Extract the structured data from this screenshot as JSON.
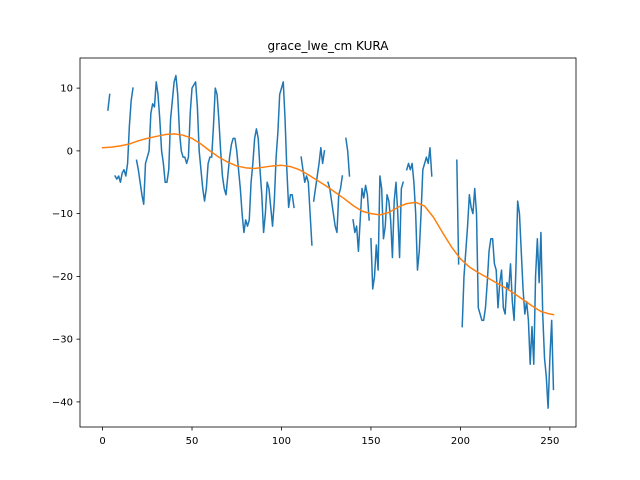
{
  "chart_data": {
    "type": "line",
    "title": "grace_lwe_cm KURA",
    "xlabel": "",
    "ylabel": "",
    "xlim": [
      -12.6,
      264.6
    ],
    "ylim": [
      -44.0,
      14.8
    ],
    "xticks": [
      0,
      50,
      100,
      150,
      200,
      250
    ],
    "yticks": [
      10,
      0,
      -10,
      -20,
      -30,
      -40
    ],
    "grid": false,
    "series": [
      {
        "color": "#1f77b4",
        "segments": [
          [
            [
              3,
              6.5
            ],
            [
              4,
              9
            ]
          ],
          [
            [
              7,
              -4
            ],
            [
              8,
              -4.5
            ],
            [
              9,
              -4
            ],
            [
              10,
              -5
            ],
            [
              11,
              -3.5
            ],
            [
              12,
              -3
            ],
            [
              13,
              -4
            ],
            [
              14,
              -2
            ],
            [
              15,
              4
            ],
            [
              16,
              8
            ],
            [
              17,
              10
            ]
          ],
          [
            [
              19,
              -1.5
            ],
            [
              20,
              -3
            ],
            [
              21,
              -5
            ],
            [
              22,
              -7
            ],
            [
              23,
              -8.5
            ],
            [
              24,
              -2
            ],
            [
              25,
              -1
            ],
            [
              26,
              0
            ],
            [
              27,
              6
            ],
            [
              28,
              7.5
            ],
            [
              29,
              7
            ],
            [
              30,
              11
            ],
            [
              31,
              9
            ],
            [
              32,
              5
            ],
            [
              33,
              0
            ],
            [
              34,
              -2
            ],
            [
              35,
              -5
            ],
            [
              36,
              -5
            ],
            [
              37,
              -3
            ],
            [
              38,
              5
            ],
            [
              39,
              8
            ],
            [
              40,
              11
            ],
            [
              41,
              12
            ],
            [
              42,
              9
            ],
            [
              43,
              3
            ],
            [
              44,
              0
            ],
            [
              45,
              -1
            ],
            [
              46,
              -1
            ],
            [
              47,
              -2
            ],
            [
              48,
              -1
            ],
            [
              49,
              6
            ],
            [
              50,
              10
            ],
            [
              51,
              10.5
            ],
            [
              52,
              11
            ],
            [
              53,
              7
            ],
            [
              54,
              0
            ],
            [
              55,
              -3
            ],
            [
              56,
              -6
            ],
            [
              57,
              -8
            ],
            [
              58,
              -6
            ],
            [
              59,
              -2
            ],
            [
              60,
              -1
            ],
            [
              61,
              -1
            ],
            [
              62,
              4
            ],
            [
              63,
              10
            ],
            [
              64,
              9
            ],
            [
              65,
              5
            ],
            [
              66,
              0
            ],
            [
              67,
              -4
            ],
            [
              68,
              -6
            ],
            [
              69,
              -7
            ],
            [
              70,
              -4
            ],
            [
              71,
              -1
            ],
            [
              72,
              1
            ],
            [
              73,
              2
            ],
            [
              74,
              2
            ],
            [
              75,
              0
            ],
            [
              76,
              -3
            ],
            [
              77,
              -6
            ],
            [
              78,
              -10
            ],
            [
              79,
              -13
            ],
            [
              80,
              -11
            ],
            [
              81,
              -12
            ],
            [
              82,
              -11
            ],
            [
              83,
              -5
            ],
            [
              84,
              -2
            ],
            [
              85,
              2
            ],
            [
              86,
              3.5
            ],
            [
              87,
              2
            ],
            [
              88,
              -3
            ],
            [
              89,
              -7
            ],
            [
              90,
              -13
            ],
            [
              91,
              -10
            ],
            [
              92,
              -5
            ],
            [
              93,
              -6
            ],
            [
              94,
              -9
            ],
            [
              95,
              -12
            ],
            [
              96,
              -8
            ],
            [
              97,
              -1
            ],
            [
              98,
              3
            ],
            [
              99,
              9
            ],
            [
              100,
              10
            ],
            [
              101,
              11
            ],
            [
              102,
              5
            ],
            [
              103,
              -3
            ],
            [
              104,
              -9
            ],
            [
              105,
              -7
            ],
            [
              106,
              -7
            ],
            [
              107,
              -9
            ]
          ],
          [
            [
              111,
              -1
            ],
            [
              112,
              -3
            ],
            [
              113,
              -5
            ],
            [
              114,
              -4
            ],
            [
              115,
              -5
            ],
            [
              116,
              -10
            ],
            [
              117,
              -15
            ]
          ],
          [
            [
              118,
              -8
            ],
            [
              119,
              -6
            ],
            [
              120,
              -4
            ],
            [
              121,
              -2
            ],
            [
              122,
              0.5
            ],
            [
              123,
              -2
            ],
            [
              124,
              0
            ]
          ],
          [
            [
              126,
              -5
            ],
            [
              127,
              -6
            ],
            [
              128,
              -8
            ],
            [
              129,
              -10
            ],
            [
              130,
              -12
            ],
            [
              131,
              -13
            ],
            [
              132,
              -7
            ],
            [
              133,
              -6
            ],
            [
              134,
              -4
            ]
          ],
          [
            [
              136,
              2
            ],
            [
              137,
              0
            ],
            [
              138,
              -4
            ]
          ],
          [
            [
              140,
              -11
            ],
            [
              141,
              -13
            ],
            [
              142,
              -12
            ],
            [
              143,
              -16
            ],
            [
              144,
              -11
            ],
            [
              145,
              -6
            ],
            [
              146,
              -7.5
            ],
            [
              147,
              -5.5
            ],
            [
              148,
              -7
            ],
            [
              149,
              -11
            ]
          ],
          [
            [
              150,
              -14
            ],
            [
              151,
              -22
            ],
            [
              152,
              -20
            ],
            [
              153,
              -15
            ],
            [
              154,
              -19
            ],
            [
              155,
              -4
            ],
            [
              156,
              -6
            ],
            [
              157,
              -14
            ],
            [
              158,
              -12
            ],
            [
              159,
              -7
            ],
            [
              160,
              -8
            ],
            [
              161,
              -11
            ],
            [
              162,
              -17
            ],
            [
              163,
              -8
            ],
            [
              164,
              -5
            ],
            [
              165,
              -10
            ],
            [
              166,
              -17
            ],
            [
              167,
              -6
            ],
            [
              168,
              -5
            ]
          ],
          [
            [
              170,
              -3
            ],
            [
              171,
              -2
            ],
            [
              172,
              -3
            ],
            [
              173,
              -2
            ],
            [
              174,
              -5
            ],
            [
              175,
              -10
            ],
            [
              176,
              -19
            ],
            [
              177,
              -16
            ],
            [
              178,
              -10
            ],
            [
              179,
              -3
            ],
            [
              180,
              -2
            ],
            [
              181,
              -1
            ],
            [
              182,
              -2
            ],
            [
              183,
              0.5
            ],
            [
              184,
              -4
            ]
          ],
          [
            [
              198,
              -1.5
            ],
            [
              199,
              -18
            ]
          ],
          [
            [
              201,
              -28
            ],
            [
              202,
              -20
            ],
            [
              203,
              -16
            ],
            [
              204,
              -12
            ],
            [
              205,
              -7
            ],
            [
              206,
              -9
            ],
            [
              207,
              -10
            ],
            [
              208,
              -6
            ],
            [
              209,
              -10
            ],
            [
              210,
              -25
            ],
            [
              211,
              -26
            ],
            [
              212,
              -27
            ],
            [
              213,
              -27
            ],
            [
              214,
              -25
            ],
            [
              215,
              -21
            ],
            [
              216,
              -16
            ],
            [
              217,
              -14
            ],
            [
              218,
              -14
            ],
            [
              219,
              -18
            ],
            [
              220,
              -19
            ],
            [
              221,
              -25
            ],
            [
              222,
              -21
            ],
            [
              223,
              -19
            ],
            [
              224,
              -25
            ],
            [
              225,
              -26
            ],
            [
              226,
              -21
            ],
            [
              227,
              -22
            ],
            [
              228,
              -18
            ],
            [
              229,
              -24
            ],
            [
              230,
              -27
            ],
            [
              231,
              -19
            ],
            [
              232,
              -8
            ],
            [
              233,
              -10
            ],
            [
              234,
              -16
            ],
            [
              235,
              -22
            ],
            [
              236,
              -26
            ],
            [
              237,
              -24
            ],
            [
              238,
              -27
            ],
            [
              239,
              -34
            ],
            [
              240,
              -28
            ],
            [
              241,
              -34
            ],
            [
              242,
              -20
            ],
            [
              243,
              -14
            ],
            [
              244,
              -21
            ],
            [
              245,
              -13
            ],
            [
              246,
              -26
            ],
            [
              247,
              -33
            ],
            [
              248,
              -36
            ],
            [
              249,
              -41
            ],
            [
              250,
              -33
            ],
            [
              251,
              -27
            ],
            [
              252,
              -38
            ]
          ]
        ]
      },
      {
        "color": "#ff7f0e",
        "segments": [
          [
            [
              0,
              0.5
            ],
            [
              5,
              0.6
            ],
            [
              10,
              0.8
            ],
            [
              15,
              1.1
            ],
            [
              20,
              1.6
            ],
            [
              25,
              2.0
            ],
            [
              30,
              2.3
            ],
            [
              35,
              2.6
            ],
            [
              40,
              2.7
            ],
            [
              45,
              2.5
            ],
            [
              50,
              2.0
            ],
            [
              55,
              1.1
            ],
            [
              60,
              0
            ],
            [
              65,
              -1.0
            ],
            [
              70,
              -1.8
            ],
            [
              75,
              -2.4
            ],
            [
              80,
              -2.7
            ],
            [
              85,
              -2.8
            ],
            [
              90,
              -2.6
            ],
            [
              95,
              -2.4
            ],
            [
              100,
              -2.3
            ],
            [
              105,
              -2.5
            ],
            [
              110,
              -3.0
            ],
            [
              115,
              -3.8
            ],
            [
              120,
              -4.7
            ],
            [
              125,
              -5.6
            ],
            [
              130,
              -6.6
            ],
            [
              135,
              -7.6
            ],
            [
              140,
              -8.7
            ],
            [
              145,
              -9.6
            ],
            [
              150,
              -10.0
            ],
            [
              155,
              -10.2
            ],
            [
              160,
              -9.8
            ],
            [
              165,
              -9.0
            ],
            [
              170,
              -8.4
            ],
            [
              175,
              -8.2
            ],
            [
              180,
              -8.8
            ],
            [
              185,
              -10.6
            ],
            [
              190,
              -13.0
            ],
            [
              195,
              -15.3
            ],
            [
              200,
              -17.2
            ],
            [
              205,
              -18.5
            ],
            [
              210,
              -19.4
            ],
            [
              215,
              -20.2
            ],
            [
              220,
              -21.0
            ],
            [
              225,
              -21.8
            ],
            [
              230,
              -22.7
            ],
            [
              235,
              -23.7
            ],
            [
              240,
              -24.7
            ],
            [
              245,
              -25.6
            ],
            [
              250,
              -26.0
            ],
            [
              252,
              -26.1
            ]
          ]
        ]
      }
    ]
  }
}
